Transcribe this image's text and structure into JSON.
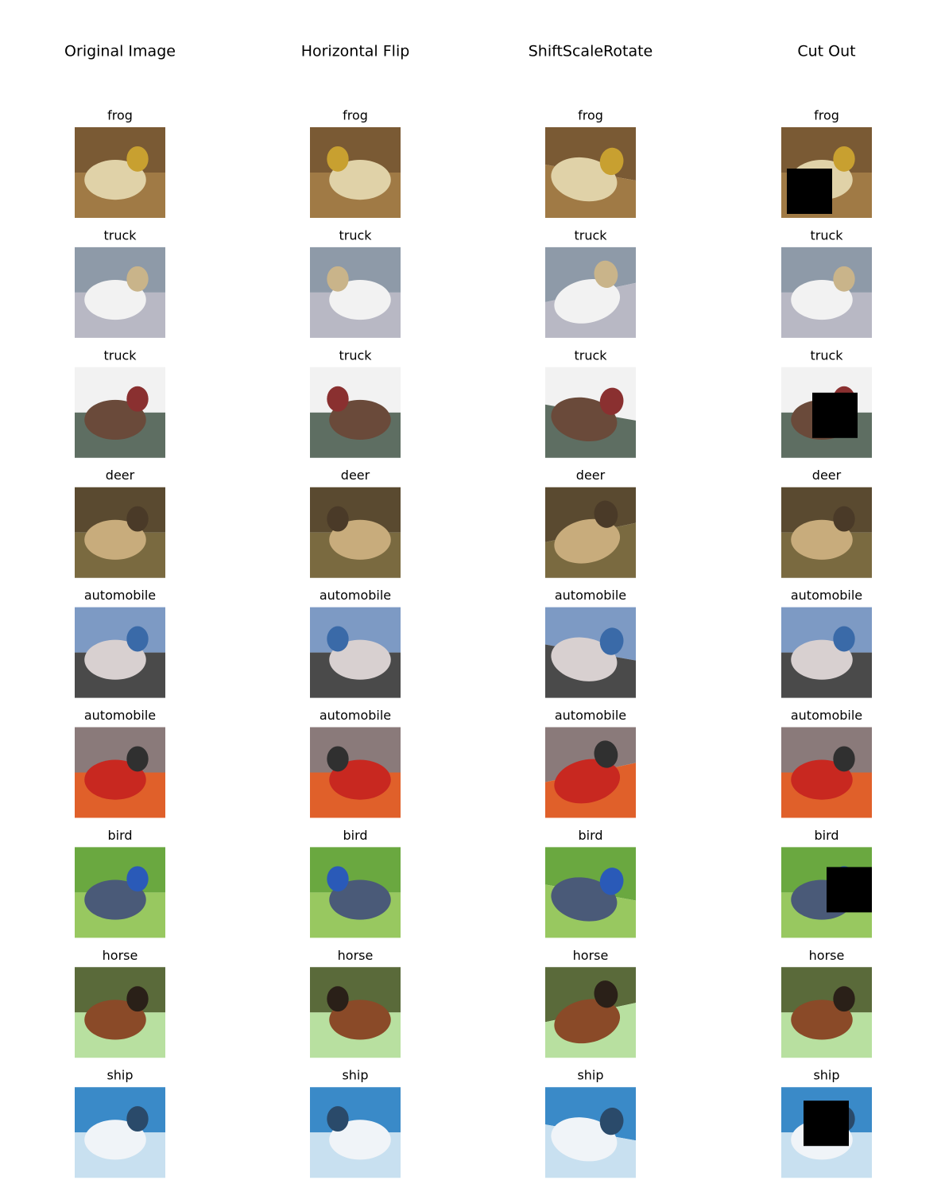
{
  "columns": [
    "Original Image",
    "Horizontal Flip",
    "ShiftScaleRotate",
    "Cut Out"
  ],
  "rows": [
    {
      "label": "frog"
    },
    {
      "label": "truck"
    },
    {
      "label": "truck"
    },
    {
      "label": "deer"
    },
    {
      "label": "automobile"
    },
    {
      "label": "automobile"
    },
    {
      "label": "bird"
    },
    {
      "label": "horse"
    },
    {
      "label": "ship"
    }
  ]
}
